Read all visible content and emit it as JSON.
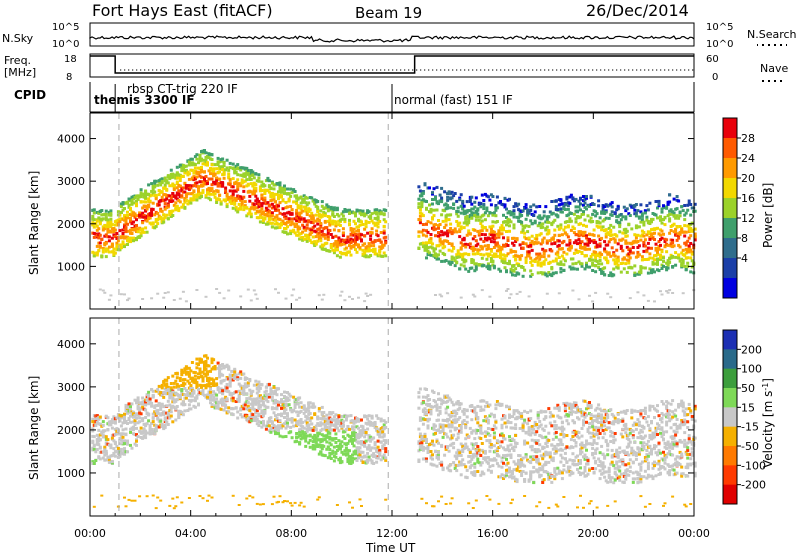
{
  "header": {
    "site": "Fort Hays East (fitACF)",
    "beam": "Beam 19",
    "date": "26/Dec/2014"
  },
  "strip_panels": {
    "nsky_label": "N.Sky",
    "nsky_ticks": [
      "10^5",
      "10^0"
    ],
    "nsearch_label": "N.Search",
    "nsearch_ticks": [
      "10^5",
      "10^0"
    ],
    "freq_label": "Freq.",
    "freq_unit": "[MHz]",
    "freq_ticks": [
      "18",
      "8"
    ],
    "nave_label": "Nave",
    "nave_ticks": [
      "60",
      "0"
    ],
    "cpid_label": "CPID",
    "cpid_modes": [
      {
        "name": "themis 3300 IF",
        "start_hour": 0
      },
      {
        "name": "rbsp CT-trig 220 IF",
        "start_hour": 1.0
      },
      {
        "name": "normal (fast) 151 IF",
        "start_hour": 12.0
      }
    ]
  },
  "chart_data": [
    {
      "type": "heatmap",
      "panel": "power",
      "ylabel": "Slant Range [km]",
      "xlabel": "Time UT",
      "ylim": [
        0,
        4600
      ],
      "xlim": [
        0,
        24
      ],
      "yticks": [
        "1000",
        "2000",
        "3000",
        "4000"
      ],
      "xticks": [
        "00:00",
        "04:00",
        "08:00",
        "12:00",
        "16:00",
        "20:00",
        "00:00"
      ],
      "colorbar": {
        "label": "Power [dB]",
        "ticks": [
          "28",
          "24",
          "20",
          "16",
          "12",
          "8",
          "4"
        ],
        "colors": [
          "#e8000b",
          "#ff5a00",
          "#ff9a00",
          "#f2d800",
          "#9bd22a",
          "#3f9f6c",
          "#2f6d8c",
          "#1b3fa8",
          "#0000e0"
        ]
      }
    },
    {
      "type": "heatmap",
      "panel": "velocity",
      "ylabel": "Slant Range [km]",
      "xlabel": "Time UT",
      "ylim": [
        0,
        4600
      ],
      "xlim": [
        0,
        24
      ],
      "yticks": [
        "1000",
        "2000",
        "3000",
        "4000"
      ],
      "xticks": [
        "00:00",
        "04:00",
        "08:00",
        "12:00",
        "16:00",
        "20:00",
        "00:00"
      ],
      "colorbar": {
        "label": "Velocity [m s^-1]",
        "ticks": [
          "200",
          "100",
          "50",
          "15",
          "-15",
          "-50",
          "-100",
          "-200"
        ],
        "colors": [
          "#1c2fb3",
          "#2a6a8a",
          "#3c9e3c",
          "#7ed957",
          "#c8c8c8",
          "#f5b000",
          "#ff7a00",
          "#ff3a00",
          "#e00000"
        ]
      }
    }
  ]
}
